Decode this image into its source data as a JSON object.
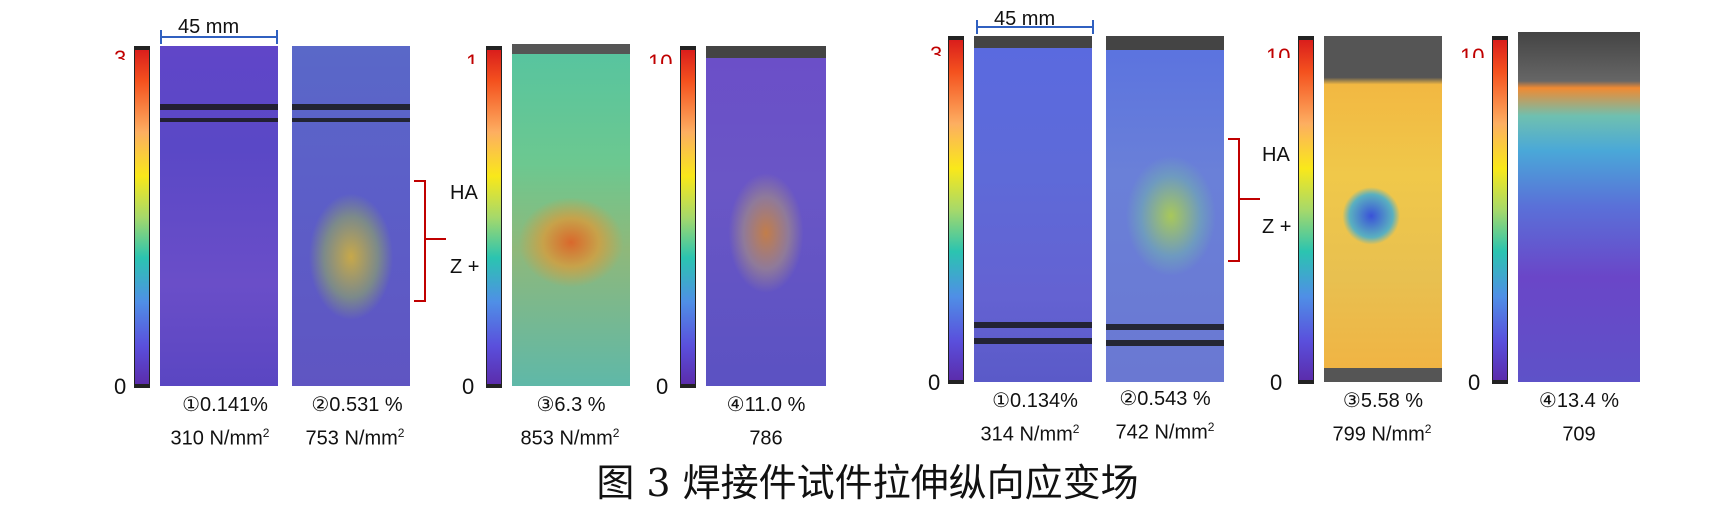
{
  "left_group": {
    "dimension": "45 mm",
    "side_labels": [
      "HA",
      "Z +"
    ],
    "scale_zero": "0",
    "specimens": [
      {
        "marker": "①",
        "strain": "0.141%",
        "stress": "310 N/mm",
        "stress_sup": "2"
      },
      {
        "marker": "②",
        "strain": "0.531 %",
        "stress": "753 N/mm",
        "stress_sup": "2"
      },
      {
        "marker": "③",
        "strain": "6.3 %",
        "stress": "853 N/mm",
        "stress_sup": "2"
      },
      {
        "marker": "④",
        "strain": "11.0 %",
        "stress": "786",
        "stress_sup": ""
      }
    ]
  },
  "right_group": {
    "dimension": "45 mm",
    "side_labels": [
      "HA",
      "Z +"
    ],
    "scale_zero": "0",
    "specimens": [
      {
        "marker": "①",
        "strain": "0.134%",
        "stress": "314 N/mm",
        "stress_sup": "2"
      },
      {
        "marker": "②",
        "strain": "0.543 %",
        "stress": "742 N/mm",
        "stress_sup": "2"
      },
      {
        "marker": "③",
        "strain": "5.58 %",
        "stress": "799 N/mm",
        "stress_sup": "2"
      },
      {
        "marker": "④",
        "strain": "13.4 %",
        "stress": "709",
        "stress_sup": ""
      }
    ]
  },
  "caption": "图 3 焊接件试件拉伸纵向应变场",
  "colors": {
    "brace": "#c00000",
    "dimension": "#3060c0",
    "scale_max_text": "#c00000"
  }
}
